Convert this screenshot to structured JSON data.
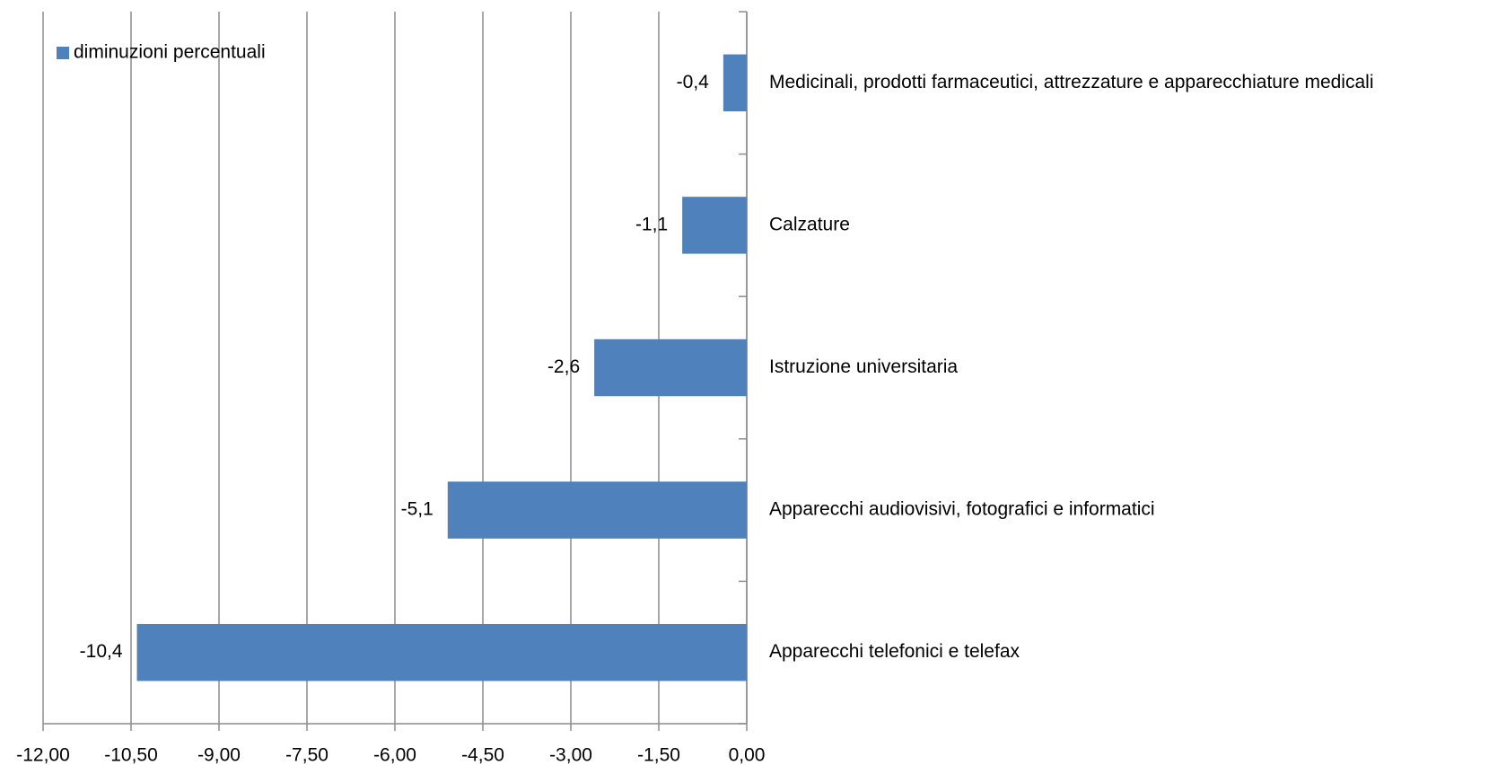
{
  "chart_data": {
    "type": "bar",
    "categories": [
      "Medicinali, prodotti farmaceutici, attrezzature e apparecchiature medicali",
      "Calzature",
      "Istruzione universitaria",
      "Apparecchi audiovisivi, fotografici e informatici",
      "Apparecchi telefonici e telefax"
    ],
    "series": [
      {
        "name": "diminuzioni percentuali",
        "color": "#4f81bd",
        "values": [
          -0.4,
          -1.1,
          -2.6,
          -5.1,
          -10.4
        ],
        "value_labels": [
          "-0,4",
          "-1,1",
          "-2,6",
          "-5,1",
          "-10,4"
        ]
      }
    ],
    "xlim": [
      -12,
      0
    ],
    "xticks": [
      {
        "value": -12,
        "label": "-12,00"
      },
      {
        "value": -10.5,
        "label": "-10,50"
      },
      {
        "value": -9,
        "label": "-9,00"
      },
      {
        "value": -7.5,
        "label": "-7,50"
      },
      {
        "value": -6,
        "label": "-6,00"
      },
      {
        "value": -4.5,
        "label": "-4,50"
      },
      {
        "value": -3,
        "label": "-3,00"
      },
      {
        "value": -1.5,
        "label": "-1,50"
      },
      {
        "value": 0,
        "label": "0,00"
      }
    ],
    "grid": true,
    "legend": "top-left"
  }
}
